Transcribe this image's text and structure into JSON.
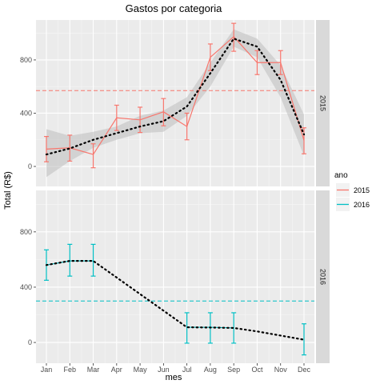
{
  "chart_data": {
    "type": "line",
    "title": "Gastos por categoria",
    "xlabel": "mes",
    "ylabel": "Total (R$)",
    "categories": [
      "Jan",
      "Feb",
      "Mar",
      "Apr",
      "May",
      "Jun",
      "Jul",
      "Aug",
      "Sep",
      "Oct",
      "Nov",
      "Dec"
    ],
    "ylim": [
      -150,
      1100
    ],
    "yticks": [
      0,
      400,
      800
    ],
    "facet_by": "ano",
    "legend": {
      "title": "ano",
      "position": "right",
      "entries": [
        "2015",
        "2016"
      ]
    },
    "colors": {
      "2015": "#F8766D",
      "2016": "#00BFC4",
      "smooth": "#000000",
      "band": "#bdbdbd",
      "panel": "#ebebeb",
      "strip": "#d9d9d9"
    },
    "facets": [
      {
        "label": "2015",
        "series": {
          "name": "2015",
          "values": [
            130,
            140,
            90,
            365,
            350,
            410,
            300,
            820,
            975,
            780,
            780,
            195
          ],
          "error_low": [
            35,
            40,
            -10,
            270,
            255,
            305,
            200,
            720,
            865,
            690,
            690,
            95
          ],
          "error_high": [
            225,
            235,
            170,
            460,
            445,
            510,
            400,
            920,
            1075,
            870,
            870,
            290
          ]
        },
        "smooth": {
          "values": [
            90,
            135,
            200,
            250,
            300,
            340,
            450,
            700,
            960,
            900,
            650,
            240
          ],
          "band_low": [
            -80,
            40,
            140,
            200,
            250,
            260,
            380,
            600,
            900,
            820,
            520,
            80
          ],
          "band_high": [
            280,
            230,
            260,
            300,
            380,
            420,
            520,
            780,
            1030,
            960,
            760,
            390
          ]
        },
        "mean_line": 570
      },
      {
        "label": "2016",
        "series": {
          "name": "2016",
          "values": [
            560,
            590,
            590,
            null,
            null,
            null,
            110,
            110,
            105,
            null,
            null,
            20
          ],
          "error_low": [
            450,
            480,
            480,
            null,
            null,
            null,
            -5,
            -5,
            -5,
            null,
            null,
            -90
          ],
          "error_high": [
            670,
            710,
            710,
            null,
            null,
            null,
            215,
            215,
            215,
            null,
            null,
            135
          ]
        },
        "smooth": {
          "values": [
            560,
            590,
            590,
            470,
            350,
            230,
            110,
            108,
            105,
            80,
            50,
            20
          ],
          "band_low": [
            560,
            590,
            590,
            470,
            350,
            230,
            110,
            108,
            105,
            80,
            50,
            20
          ],
          "band_high": [
            560,
            590,
            590,
            470,
            350,
            230,
            110,
            108,
            105,
            80,
            50,
            20
          ]
        },
        "mean_line": 300
      }
    ]
  }
}
